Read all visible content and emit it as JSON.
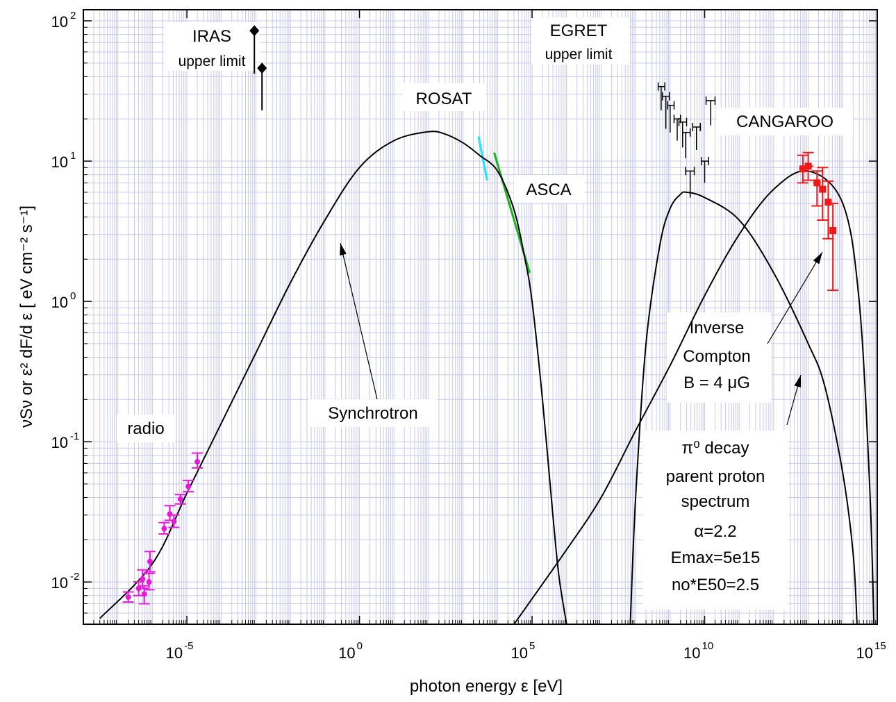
{
  "chart_data": {
    "type": "scatter",
    "x_scale": "log",
    "y_scale": "log",
    "xlim": [
      1e-08,
      1000000000000000.0
    ],
    "ylim": [
      0.005,
      120
    ],
    "grid": true,
    "xlabel": "photon energy   ε [eV]",
    "ylabel": "νSν  or   ε² dF/d ε [ eV cm⁻² s⁻¹]",
    "x_ticks": [
      {
        "x": 1e-05,
        "base": "10",
        "exp": "-5"
      },
      {
        "x": 1,
        "base": "10",
        "exp": "0"
      },
      {
        "x": 100000.0,
        "base": "10",
        "exp": "5"
      },
      {
        "x": 10000000000.0,
        "base": "10",
        "exp": "10"
      },
      {
        "x": 1000000000000000.0,
        "base": "10",
        "exp": "15"
      }
    ],
    "y_ticks": [
      {
        "y": 0.01,
        "base": "10",
        "exp": "-2"
      },
      {
        "y": 0.1,
        "base": "10",
        "exp": "-1"
      },
      {
        "y": 1,
        "base": "10",
        "exp": "0"
      },
      {
        "y": 10,
        "base": "10",
        "exp": "1"
      },
      {
        "y": 100,
        "base": "10",
        "exp": "2"
      }
    ],
    "series": [
      {
        "name": "radio",
        "color": "#e619d8",
        "kind": "points_errorbars",
        "points": [
          {
            "x": 2e-07,
            "y": 0.0078,
            "ylo": 0.0072,
            "yhi": 0.0085
          },
          {
            "x": 4e-07,
            "y": 0.009,
            "ylo": 0.008,
            "yhi": 0.01
          },
          {
            "x": 5.2e-07,
            "y": 0.0105,
            "ylo": 0.009,
            "yhi": 0.0122
          },
          {
            "x": 5.8e-07,
            "y": 0.0082,
            "ylo": 0.007,
            "yhi": 0.0094
          },
          {
            "x": 8e-07,
            "y": 0.01,
            "ylo": 0.0088,
            "yhi": 0.0115
          },
          {
            "x": 8.5e-07,
            "y": 0.014,
            "ylo": 0.0118,
            "yhi": 0.0165
          },
          {
            "x": 2.2e-06,
            "y": 0.024,
            "ylo": 0.022,
            "yhi": 0.0265
          },
          {
            "x": 3.2e-06,
            "y": 0.0305,
            "ylo": 0.0275,
            "yhi": 0.035
          },
          {
            "x": 4.2e-06,
            "y": 0.027,
            "ylo": 0.0245,
            "yhi": 0.03
          },
          {
            "x": 6.5e-06,
            "y": 0.039,
            "ylo": 0.036,
            "yhi": 0.042
          },
          {
            "x": 1.1e-05,
            "y": 0.048,
            "ylo": 0.044,
            "yhi": 0.053
          },
          {
            "x": 2e-05,
            "y": 0.072,
            "ylo": 0.065,
            "yhi": 0.083
          }
        ]
      },
      {
        "name": "IRAS upper limit",
        "color": "#000000",
        "kind": "upper_limits",
        "points": [
          {
            "x": 0.0009,
            "y": 85,
            "ylo": 42
          },
          {
            "x": 0.0015,
            "y": 46,
            "ylo": 23
          }
        ]
      },
      {
        "name": "ROSAT",
        "color": "#19e5ff",
        "kind": "segment",
        "points": [
          {
            "x": 2800,
            "y": 15
          },
          {
            "x": 5000,
            "y": 7.3
          }
        ]
      },
      {
        "name": "ASCA",
        "color": "#19b519",
        "kind": "segment",
        "points": [
          {
            "x": 8000,
            "y": 11.5
          },
          {
            "x": 85000,
            "y": 1.6
          }
        ]
      },
      {
        "name": "EGRET upper limit",
        "color": "#000000",
        "kind": "upper_limit_bars",
        "points": [
          {
            "x": 550000000.0,
            "y": 34,
            "xlo": 450000000.0,
            "xhi": 700000000.0,
            "ylo": 23
          },
          {
            "x": 750000000.0,
            "y": 29,
            "xlo": 600000000.0,
            "xhi": 950000000.0,
            "ylo": 17
          },
          {
            "x": 1000000000.0,
            "y": 25,
            "xlo": 850000000.0,
            "xhi": 1300000000.0,
            "ylo": 16
          },
          {
            "x": 1600000000.0,
            "y": 20,
            "xlo": 1300000000.0,
            "xhi": 2000000000.0,
            "ylo": 14
          },
          {
            "x": 2300000000.0,
            "y": 19,
            "xlo": 1800000000.0,
            "xhi": 3000000000.0,
            "ylo": 12.5
          },
          {
            "x": 2800000000.0,
            "y": 16,
            "xlo": 2300000000.0,
            "xhi": 3800000000.0,
            "ylo": 10.5
          },
          {
            "x": 3800000000.0,
            "y": 8.5,
            "xlo": 2800000000.0,
            "xhi": 5000000000.0,
            "ylo": 5.5
          },
          {
            "x": 5800000000.0,
            "y": 17.5,
            "xlo": 4500000000.0,
            "xhi": 7500000000.0,
            "ylo": 12
          },
          {
            "x": 10000000000.0,
            "y": 10,
            "xlo": 8000000000.0,
            "xhi": 13000000000.0,
            "ylo": 7
          },
          {
            "x": 15000000000.0,
            "y": 27,
            "xlo": 11000000000.0,
            "xhi": 20000000000.0,
            "ylo": 18
          }
        ]
      },
      {
        "name": "CANGAROO",
        "color": "#f01818",
        "kind": "points_errorbars_x",
        "points": [
          {
            "x": 7000000000000.0,
            "y": 8.8,
            "xlo": 5500000000000.0,
            "xhi": 9500000000000.0,
            "ylo": 7.0,
            "yhi": 11.0
          },
          {
            "x": 10000000000000.0,
            "y": 9.2,
            "xlo": 7500000000000.0,
            "xhi": 14000000000000.0,
            "ylo": 7.3,
            "yhi": 11.5
          },
          {
            "x": 18000000000000.0,
            "y": 7.0,
            "xlo": 14000000000000.0,
            "xhi": 23000000000000.0,
            "ylo": 4.8,
            "yhi": 8.5
          },
          {
            "x": 26000000000000.0,
            "y": 6.3,
            "xlo": 21000000000000.0,
            "xhi": 33000000000000.0,
            "ylo": 3.8,
            "yhi": 9.0
          },
          {
            "x": 38000000000000.0,
            "y": 5.1,
            "xlo": 32000000000000.0,
            "xhi": 45000000000000.0,
            "ylo": 2.8,
            "yhi": 7.2
          },
          {
            "x": 52000000000000.0,
            "y": 3.2,
            "xlo": 45000000000000.0,
            "xhi": 62000000000000.0,
            "ylo": 1.2,
            "yhi": 5.0
          }
        ]
      },
      {
        "name": "Synchrotron",
        "color": "#000000",
        "kind": "curve",
        "points": [
          {
            "x": 3e-08,
            "y": 0.0055
          },
          {
            "x": 1e-06,
            "y": 0.0135
          },
          {
            "x": 1e-05,
            "y": 0.043
          },
          {
            "x": 0.0001,
            "y": 0.136
          },
          {
            "x": 0.001,
            "y": 0.43
          },
          {
            "x": 0.01,
            "y": 1.36
          },
          {
            "x": 0.1,
            "y": 3.8
          },
          {
            "x": 1,
            "y": 9.0
          },
          {
            "x": 10,
            "y": 14
          },
          {
            "x": 100,
            "y": 16.2
          },
          {
            "x": 300,
            "y": 15.6
          },
          {
            "x": 1000,
            "y": 13.5
          },
          {
            "x": 3000,
            "y": 11
          },
          {
            "x": 10000,
            "y": 8.5
          },
          {
            "x": 30000,
            "y": 4.5
          },
          {
            "x": 60000,
            "y": 2.1
          },
          {
            "x": 100000,
            "y": 1.0
          },
          {
            "x": 200000,
            "y": 0.2
          },
          {
            "x": 400000,
            "y": 0.03
          },
          {
            "x": 600000,
            "y": 0.011
          },
          {
            "x": 1000000,
            "y": 0.005
          }
        ]
      },
      {
        "name": "π⁰ decay",
        "color": "#000000",
        "kind": "curve",
        "points": [
          {
            "x": 70000000.0,
            "y": 0.005
          },
          {
            "x": 100000000.0,
            "y": 0.04
          },
          {
            "x": 200000000.0,
            "y": 0.5
          },
          {
            "x": 500000000.0,
            "y": 2.5
          },
          {
            "x": 1000000000.0,
            "y": 4.6
          },
          {
            "x": 2000000000.0,
            "y": 5.8
          },
          {
            "x": 3000000000.0,
            "y": 6.0
          },
          {
            "x": 10000000000.0,
            "y": 5.5
          },
          {
            "x": 100000000000.0,
            "y": 3.8
          },
          {
            "x": 1000000000000.0,
            "y": 1.6
          },
          {
            "x": 10000000000000.0,
            "y": 0.5
          },
          {
            "x": 30000000000000.0,
            "y": 0.25
          },
          {
            "x": 100000000000000.0,
            "y": 0.06
          },
          {
            "x": 200000000000000.0,
            "y": 0.016
          },
          {
            "x": 260000000000000.0,
            "y": 0.005
          }
        ]
      },
      {
        "name": "Inverse Compton",
        "color": "#000000",
        "kind": "curve",
        "points": [
          {
            "x": 30000.0,
            "y": 0.005
          },
          {
            "x": 1000000.0,
            "y": 0.017
          },
          {
            "x": 10000000.0,
            "y": 0.04
          },
          {
            "x": 100000000.0,
            "y": 0.12
          },
          {
            "x": 1000000000.0,
            "y": 0.35
          },
          {
            "x": 10000000000.0,
            "y": 1.1
          },
          {
            "x": 100000000000.0,
            "y": 3.0
          },
          {
            "x": 1000000000000.0,
            "y": 6.3
          },
          {
            "x": 10000000000000.0,
            "y": 8.5
          },
          {
            "x": 100000000000000.0,
            "y": 5.0
          },
          {
            "x": 300000000000000.0,
            "y": 1.0
          },
          {
            "x": 600000000000000.0,
            "y": 0.05
          },
          {
            "x": 800000000000000.0,
            "y": 0.005
          }
        ]
      }
    ],
    "annotations": {
      "iras": {
        "line1": "IRAS",
        "line2": "upper limit"
      },
      "egret": {
        "line1": "EGRET",
        "line2": "upper limit"
      },
      "rosat": "ROSAT",
      "asca": "ASCA",
      "cangaroo": "CANGAROO",
      "radio": "radio",
      "synchrotron": "Synchrotron",
      "ic": {
        "line1": "Inverse",
        "line2": "Compton",
        "line3": "B = 4  μG"
      },
      "pion": {
        "line1": "π⁰ decay",
        "line2": "parent proton",
        "line3": "spectrum",
        "line4": "α=2.2",
        "line5": "Emax=5e15",
        "line6": "no*E50=2.5"
      }
    }
  }
}
